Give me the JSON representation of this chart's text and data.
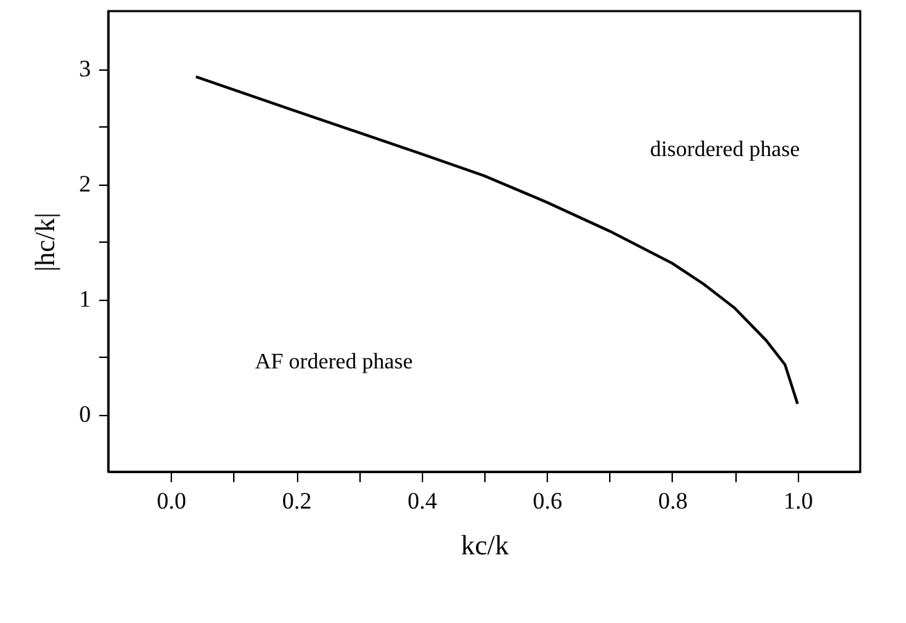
{
  "chart_data": {
    "type": "line",
    "xlabel": "kc/k",
    "ylabel": "|hc/k|",
    "x": [
      0.04,
      0.2,
      0.4,
      0.5,
      0.6,
      0.7,
      0.8,
      0.85,
      0.9,
      0.95,
      0.98,
      1.0
    ],
    "series": [
      {
        "color": "#000000",
        "values": [
          2.93,
          2.63,
          2.26,
          2.07,
          1.84,
          1.59,
          1.31,
          1.13,
          0.92,
          0.64,
          0.43,
          0.09
        ]
      }
    ],
    "xlim": [
      -0.1,
      1.1
    ],
    "xticks": [
      {
        "value": 0.0,
        "label": "0.0"
      },
      {
        "value": 0.1,
        "label": null
      },
      {
        "value": 0.2,
        "label": "0.2"
      },
      {
        "value": 0.3,
        "label": null
      },
      {
        "value": 0.4,
        "label": "0.4"
      },
      {
        "value": 0.5,
        "label": null
      },
      {
        "value": 0.6,
        "label": "0.6"
      },
      {
        "value": 0.7,
        "label": null
      },
      {
        "value": 0.8,
        "label": "0.8"
      },
      {
        "value": 0.9,
        "label": null
      },
      {
        "value": 1.0,
        "label": "1.0"
      }
    ],
    "ylim": [
      -0.5,
      3.5
    ],
    "yticks": [
      {
        "value": 0,
        "label": "0"
      },
      {
        "value": 0.5,
        "label": null
      },
      {
        "value": 1,
        "label": "1"
      },
      {
        "value": 1.5,
        "label": null
      },
      {
        "value": 2,
        "label": "2"
      },
      {
        "value": 2.5,
        "label": null
      },
      {
        "value": 3,
        "label": "3"
      }
    ],
    "annotations": [
      "disordered phase",
      "AF ordered phase"
    ],
    "grid": false,
    "marker": "none",
    "line_style": "solid"
  }
}
